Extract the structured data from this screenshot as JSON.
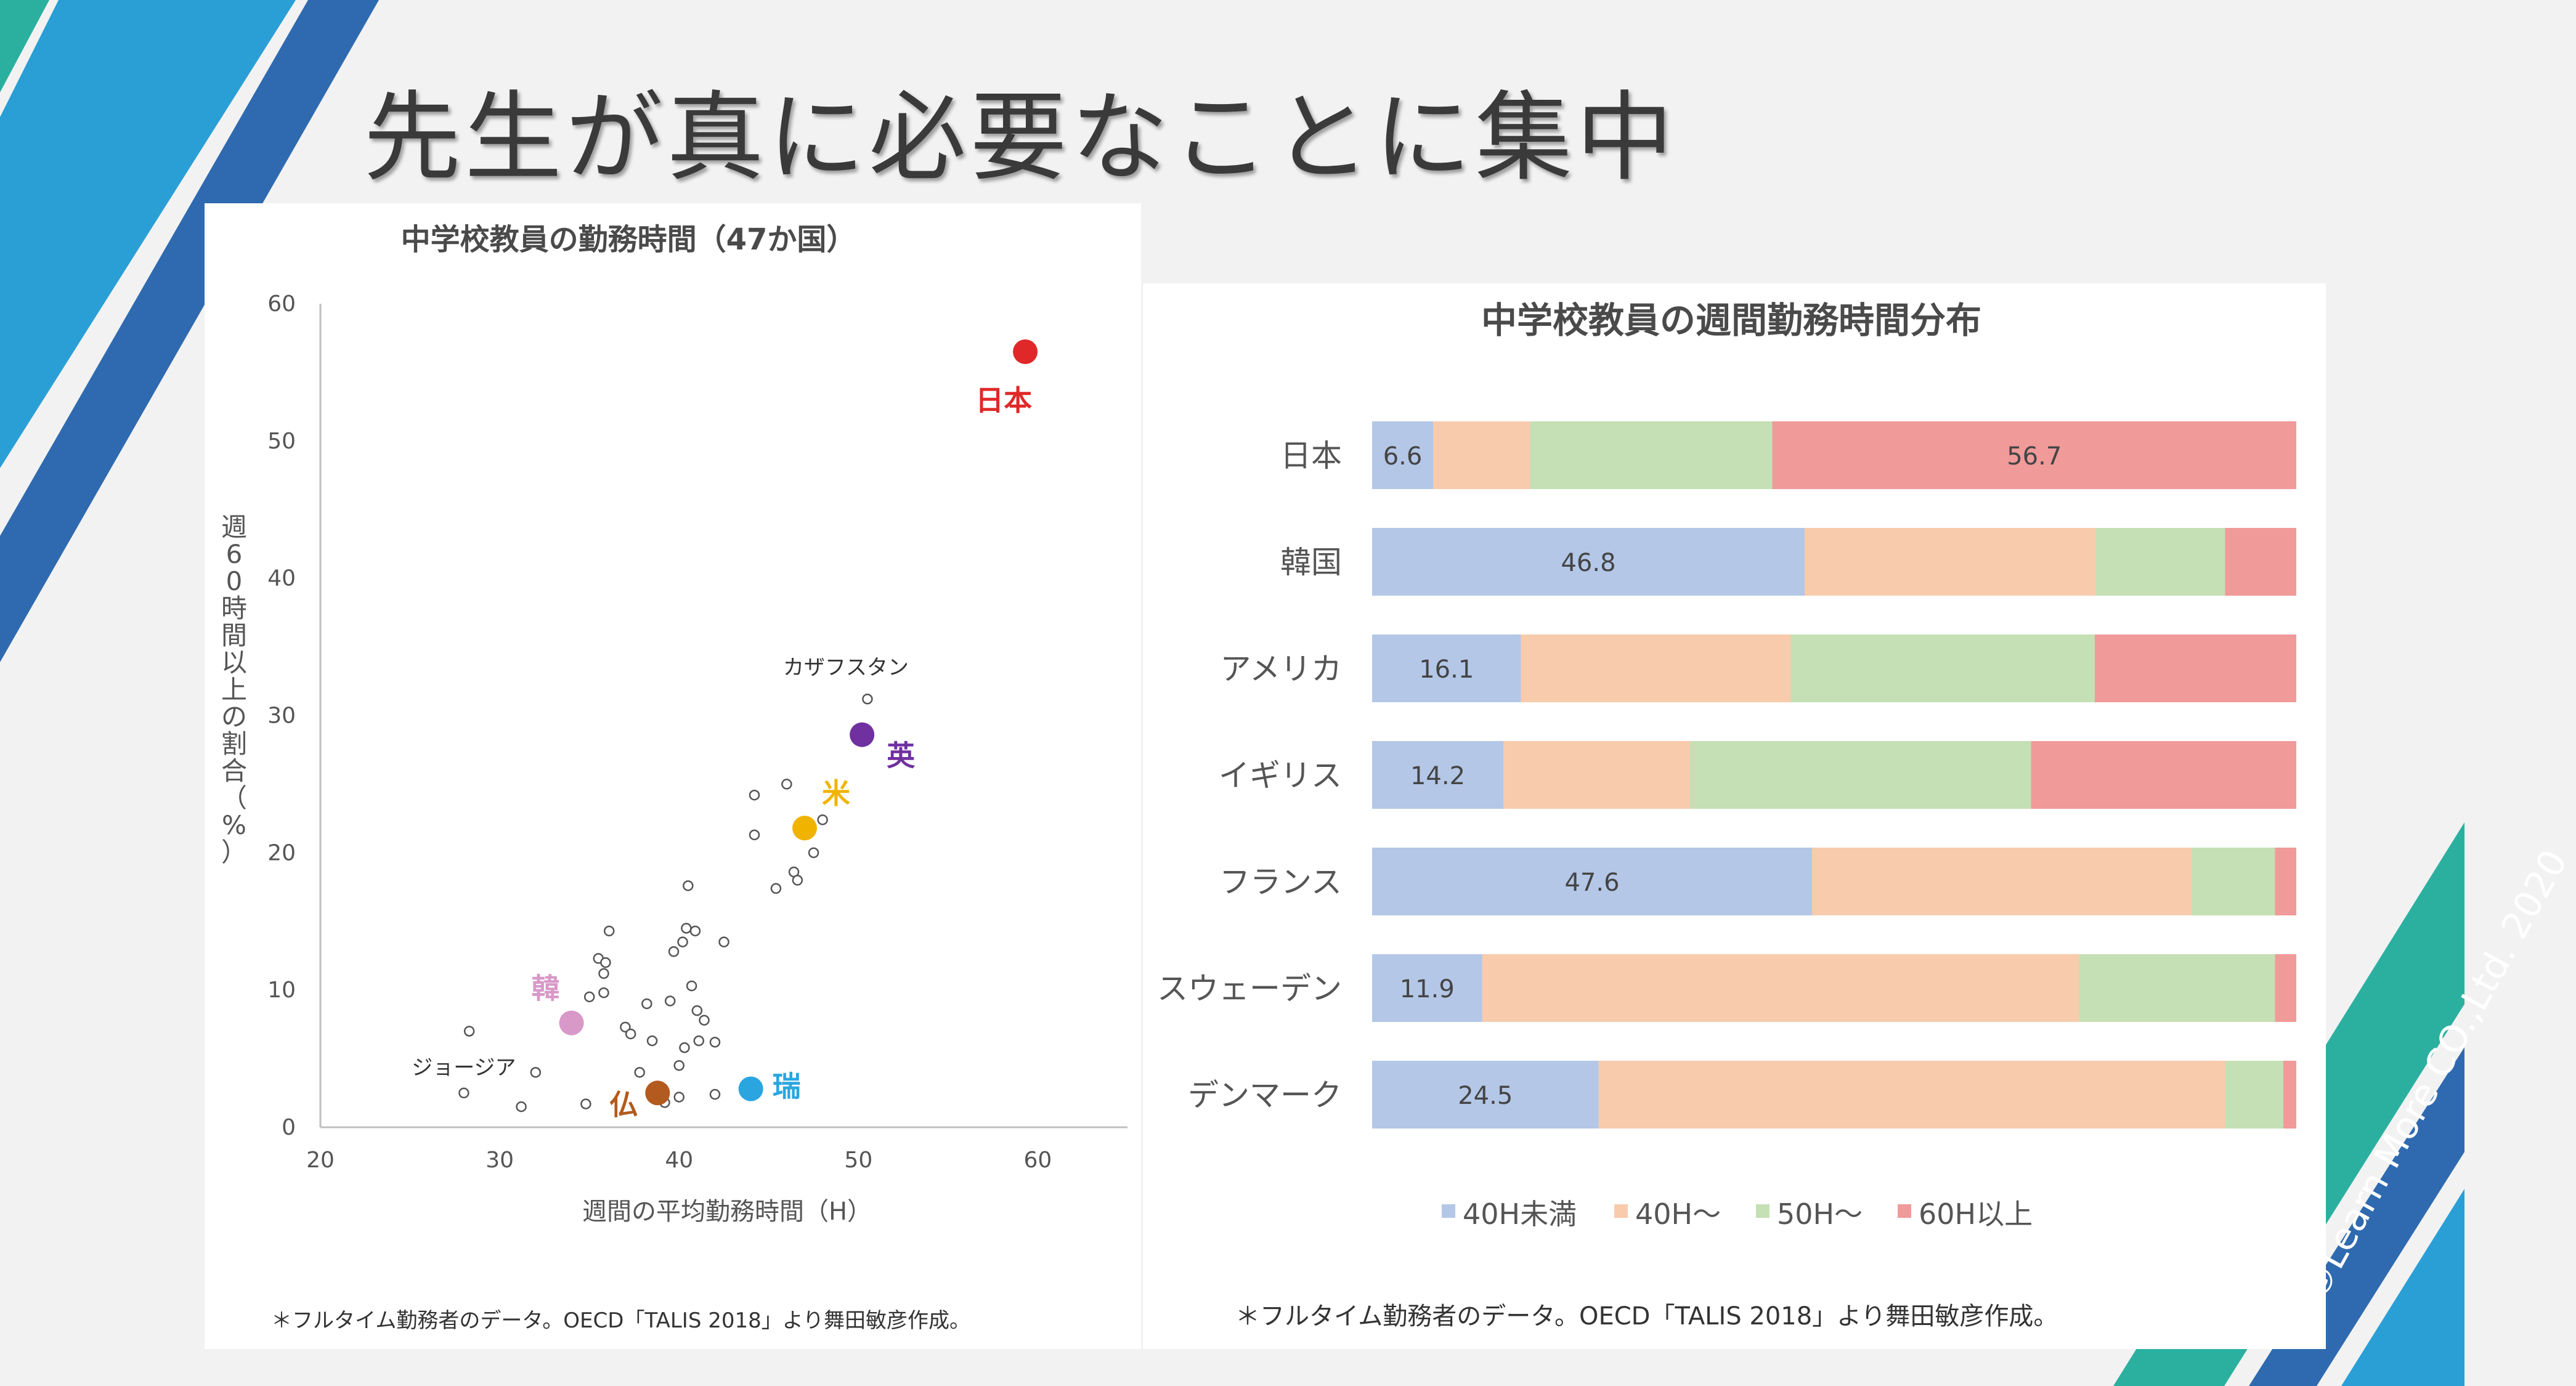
{
  "slide": {
    "title": "先生が真に必要なことに集中",
    "copyright": "©Learn More CO.,Ltd. 2020",
    "colors": {
      "stripe_dark": "#2f6ab0",
      "stripe_mid": "#2a9fd6",
      "stripe_teal": "#2bb0a0"
    }
  },
  "chart_data": [
    {
      "type": "scatter",
      "title": "中学校教員の勤務時間（47か国）",
      "xlabel": "週間の平均勤務時間（H）",
      "ylabel": "週60時間以上の割合（%）",
      "xlim": [
        20,
        65
      ],
      "ylim": [
        0,
        60
      ],
      "xticks": [
        "20",
        "30",
        "40",
        "50",
        "60"
      ],
      "yticks": [
        "0",
        "10",
        "20",
        "30",
        "40",
        "50",
        "60"
      ],
      "note": "＊フルタイム勤務者のデータ。OECD「TALIS 2018」より舞田敏彦作成。",
      "highlighted": [
        {
          "label": "日本",
          "x": 59.3,
          "y": 56.5,
          "color": "#e02828"
        },
        {
          "label": "英",
          "x": 50.2,
          "y": 28.6,
          "color": "#7030a0"
        },
        {
          "label": "米",
          "x": 47.0,
          "y": 21.8,
          "color": "#f0b400"
        },
        {
          "label": "韓",
          "x": 34.0,
          "y": 7.6,
          "color": "#d898c8"
        },
        {
          "label": "仏",
          "x": 38.8,
          "y": 2.5,
          "color": "#b35a1e"
        },
        {
          "label": "瑞",
          "x": 44.0,
          "y": 2.8,
          "color": "#2aa5e0"
        }
      ],
      "annotated": [
        {
          "label": "カザフスタン",
          "x": 50.5,
          "y": 31.2
        },
        {
          "label": "ジョージア",
          "x": 28.0,
          "y": 2.5
        }
      ],
      "points": [
        [
          28.3,
          7.0
        ],
        [
          31.2,
          1.5
        ],
        [
          32.0,
          4.0
        ],
        [
          34.8,
          1.7
        ],
        [
          35.0,
          9.5
        ],
        [
          35.5,
          12.3
        ],
        [
          35.8,
          11.2
        ],
        [
          35.8,
          9.8
        ],
        [
          35.9,
          12.0
        ],
        [
          36.1,
          14.3
        ],
        [
          37.0,
          7.3
        ],
        [
          37.3,
          6.8
        ],
        [
          37.8,
          4.0
        ],
        [
          38.2,
          9.0
        ],
        [
          38.5,
          6.3
        ],
        [
          39.2,
          1.8
        ],
        [
          39.5,
          9.2
        ],
        [
          39.7,
          12.8
        ],
        [
          40.0,
          2.2
        ],
        [
          40.0,
          4.5
        ],
        [
          40.2,
          13.5
        ],
        [
          40.3,
          5.8
        ],
        [
          40.4,
          14.5
        ],
        [
          40.5,
          17.6
        ],
        [
          40.7,
          10.3
        ],
        [
          40.9,
          14.3
        ],
        [
          41.0,
          8.5
        ],
        [
          41.1,
          6.3
        ],
        [
          41.4,
          7.8
        ],
        [
          42.0,
          6.2
        ],
        [
          42.0,
          2.4
        ],
        [
          42.5,
          13.5
        ],
        [
          44.2,
          24.2
        ],
        [
          44.2,
          21.3
        ],
        [
          45.4,
          17.4
        ],
        [
          46.0,
          25.0
        ],
        [
          46.4,
          18.6
        ],
        [
          46.6,
          18.0
        ],
        [
          47.5,
          20.0
        ],
        [
          48.0,
          22.4
        ]
      ]
    },
    {
      "type": "bar",
      "stacked": true,
      "orientation": "horizontal",
      "title": "中学校教員の週間勤務時間分布",
      "note": "＊フルタイム勤務者のデータ。OECD「TALIS 2018」より舞田敏彦作成。",
      "legend_position": "bottom",
      "categories": [
        "日本",
        "韓国",
        "アメリカ",
        "イギリス",
        "フランス",
        "スウェーデン",
        "デンマーク"
      ],
      "series": [
        {
          "name": "40H未満",
          "color": "#b4c7e7",
          "values": [
            6.6,
            46.8,
            16.1,
            14.2,
            47.6,
            11.9,
            24.5
          ]
        },
        {
          "name": "40H～",
          "color": "#f8cbad",
          "values": [
            10.5,
            31.5,
            29.2,
            20.2,
            41.1,
            64.6,
            67.8
          ]
        },
        {
          "name": "50H～",
          "color": "#c5e0b4",
          "values": [
            26.2,
            14.0,
            32.9,
            36.9,
            9.0,
            21.2,
            6.3
          ]
        },
        {
          "name": "60H以上",
          "color": "#f19a9a",
          "values": [
            56.7,
            7.7,
            21.8,
            28.7,
            2.3,
            2.3,
            1.4
          ]
        }
      ],
      "data_labels": [
        {
          "category_index": 0,
          "series_index": 0,
          "text": "6.6"
        },
        {
          "category_index": 0,
          "series_index": 3,
          "text": "56.7"
        },
        {
          "category_index": 1,
          "series_index": 0,
          "text": "46.8"
        },
        {
          "category_index": 2,
          "series_index": 0,
          "text": "16.1"
        },
        {
          "category_index": 3,
          "series_index": 0,
          "text": "14.2"
        },
        {
          "category_index": 4,
          "series_index": 0,
          "text": "47.6"
        },
        {
          "category_index": 5,
          "series_index": 0,
          "text": "11.9"
        },
        {
          "category_index": 6,
          "series_index": 0,
          "text": "24.5"
        }
      ]
    }
  ]
}
